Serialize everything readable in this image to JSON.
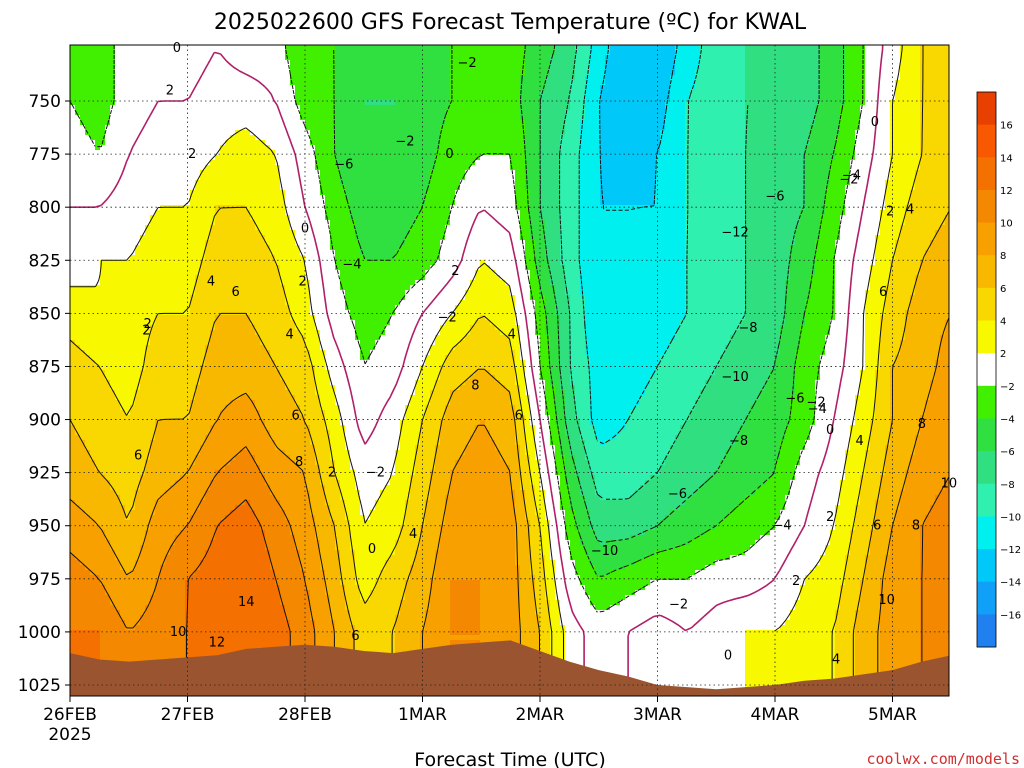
{
  "chart_data": {
    "type": "heatmap",
    "title": "2025022600 GFS Forecast Temperature (ºC) for KWAL",
    "xlabel": "Forecast Time (UTC)",
    "ylabel": "",
    "credit": "coolwx.com/models",
    "x_ticks": [
      {
        "label": "26FEB",
        "sublabel": "2025",
        "day": 0
      },
      {
        "label": "27FEB",
        "sublabel": "",
        "day": 1
      },
      {
        "label": "28FEB",
        "sublabel": "",
        "day": 2
      },
      {
        "label": "1MAR",
        "sublabel": "",
        "day": 3
      },
      {
        "label": "2MAR",
        "sublabel": "",
        "day": 4
      },
      {
        "label": "3MAR",
        "sublabel": "",
        "day": 5
      },
      {
        "label": "4MAR",
        "sublabel": "",
        "day": 6
      },
      {
        "label": "5MAR",
        "sublabel": "",
        "day": 7
      }
    ],
    "xlim_days": [
      0,
      7.5
    ],
    "y_ticks": [
      750,
      775,
      800,
      825,
      850,
      875,
      900,
      925,
      950,
      975,
      1000,
      1025
    ],
    "ylim_hpa": [
      720,
      1027
    ],
    "y_inverted": true,
    "colorbar": {
      "labels": [
        "16",
        "14",
        "12",
        "10",
        "8",
        "6",
        "4",
        "2",
        "−2",
        "−4",
        "−6",
        "−8",
        "−10",
        "−12",
        "−14",
        "−16"
      ],
      "colors": [
        "#e84000",
        "#f85800",
        "#f47000",
        "#f48800",
        "#f8a000",
        "#f8b800",
        "#f8d800",
        "#f8f800",
        "#ffffff",
        "#40f000",
        "#30e040",
        "#30e080",
        "#30f0b0",
        "#00f0f0",
        "#00c8f8",
        "#10a0f8",
        "#2080f0"
      ]
    },
    "levels_c": [
      -16,
      -14,
      -12,
      -10,
      -8,
      -6,
      -4,
      -2,
      0,
      2,
      4,
      6,
      8,
      10,
      12,
      14,
      16
    ],
    "time_days": [
      0,
      0.25,
      0.5,
      0.75,
      1,
      1.25,
      1.5,
      1.75,
      2,
      2.25,
      2.5,
      2.75,
      3,
      3.25,
      3.5,
      3.75,
      4,
      4.25,
      4.5,
      4.75,
      5,
      5.25,
      5.5,
      5.75,
      6,
      6.25,
      6.5,
      6.75,
      7,
      7.25,
      7.5
    ],
    "pressure_hpa": [
      725,
      750,
      775,
      800,
      825,
      850,
      875,
      900,
      925,
      950,
      975,
      1000,
      1025
    ],
    "surface_hpa": [
      1010,
      1013,
      1014,
      1013,
      1012,
      1011,
      1008,
      1007,
      1006,
      1007,
      1009,
      1010,
      1008,
      1006,
      1005,
      1004,
      1009,
      1014,
      1018,
      1021,
      1025,
      1026,
      1027,
      1026,
      1025,
      1023,
      1022,
      1020,
      1018,
      1014,
      1011
    ],
    "temperature_c": [
      [
        -4,
        -3,
        -1,
        -1,
        -1,
        0,
        -1,
        -1,
        -4,
        -4,
        -5,
        -5,
        -5,
        -4,
        -3,
        -3,
        -5,
        -7,
        -11,
        -14,
        -14,
        -11,
        -9,
        -8,
        -8,
        -7,
        -5,
        -2,
        1,
        4,
        5
      ],
      [
        -2,
        -3,
        -1,
        0,
        0,
        1,
        1,
        0,
        -3,
        -4,
        -6,
        -6,
        -5,
        -4,
        -3,
        -3,
        -6,
        -8,
        -12,
        -14,
        -13,
        -10,
        -9,
        -8,
        -8,
        -7,
        -5,
        -2,
        2,
        4,
        5
      ],
      [
        -1,
        -2,
        0,
        1,
        1,
        2,
        3,
        2,
        -1,
        -4,
        -6,
        -6,
        -5,
        -3,
        -2,
        -2,
        -6,
        -9,
        -12,
        -13,
        -12,
        -10,
        -9,
        -8,
        -7,
        -6,
        -4,
        -1,
        2,
        4,
        6
      ],
      [
        0,
        0,
        1,
        2,
        2,
        4,
        4,
        3,
        0,
        -3,
        -5,
        -5,
        -4,
        -2,
        0,
        -1,
        -6,
        -9,
        -12,
        -12,
        -12,
        -10,
        -9,
        -8,
        -7,
        -6,
        -3,
        0,
        3,
        5,
        6
      ],
      [
        1,
        2,
        2,
        3,
        3,
        5,
        5,
        4,
        2,
        -2,
        -4,
        -4,
        -3,
        -1,
        2,
        1,
        -5,
        -9,
        -12,
        -12,
        -11,
        -10,
        -9,
        -8,
        -7,
        -5,
        -2,
        1,
        4,
        6,
        7
      ],
      [
        3,
        2,
        3,
        4,
        4,
        6,
        6,
        5,
        3,
        -1,
        -3,
        -2,
        0,
        2,
        4,
        3,
        -3,
        -8,
        -12,
        -12,
        -11,
        -10,
        -9,
        -8,
        -7,
        -4,
        -2,
        2,
        5,
        7,
        8
      ],
      [
        5,
        4,
        3,
        5,
        5,
        7,
        7,
        6,
        5,
        1,
        -2,
        -1,
        2,
        5,
        6,
        5,
        -2,
        -8,
        -11,
        -11,
        -10,
        -9,
        -8,
        -7,
        -6,
        -3,
        -1,
        2,
        6,
        7,
        9
      ],
      [
        6,
        5,
        4,
        6,
        6,
        8,
        9,
        7,
        6,
        3,
        -1,
        1,
        4,
        7,
        8,
        7,
        0,
        -7,
        -11,
        -10,
        -9,
        -8,
        -7,
        -6,
        -5,
        -3,
        0,
        3,
        6,
        8,
        10
      ],
      [
        7,
        6,
        5,
        7,
        8,
        10,
        11,
        9,
        8,
        4,
        1,
        2,
        5,
        8,
        9,
        8,
        2,
        -5,
        -9,
        -9,
        -8,
        -7,
        -6,
        -5,
        -4,
        -1,
        1,
        4,
        7,
        9,
        10
      ],
      [
        9,
        8,
        6,
        9,
        10,
        12,
        13,
        11,
        9,
        6,
        2,
        3,
        6,
        9,
        10,
        9,
        4,
        -3,
        -7,
        -7,
        -6,
        -5,
        -4,
        -3,
        -2,
        0,
        2,
        5,
        8,
        10,
        11
      ],
      [
        11,
        10,
        8,
        10,
        12,
        13,
        14,
        12,
        10,
        7,
        3,
        5,
        7,
        10,
        10,
        9,
        5,
        -1,
        -4,
        -3,
        -2,
        -2,
        -1,
        -1,
        0,
        2,
        3,
        6,
        9,
        10,
        11
      ],
      [
        12,
        12,
        10,
        11,
        12,
        14,
        13,
        13,
        11,
        8,
        5,
        6,
        8,
        10,
        10,
        9,
        6,
        1,
        -1,
        0,
        1,
        0,
        1,
        2,
        2,
        3,
        4,
        7,
        9,
        10,
        11
      ],
      [
        12,
        12,
        10,
        11,
        12,
        14,
        13,
        13,
        11,
        8,
        5,
        6,
        8,
        10,
        10,
        9,
        6,
        1,
        -1,
        0,
        1,
        0,
        1,
        2,
        2,
        3,
        4,
        7,
        9,
        10,
        11
      ]
    ]
  }
}
